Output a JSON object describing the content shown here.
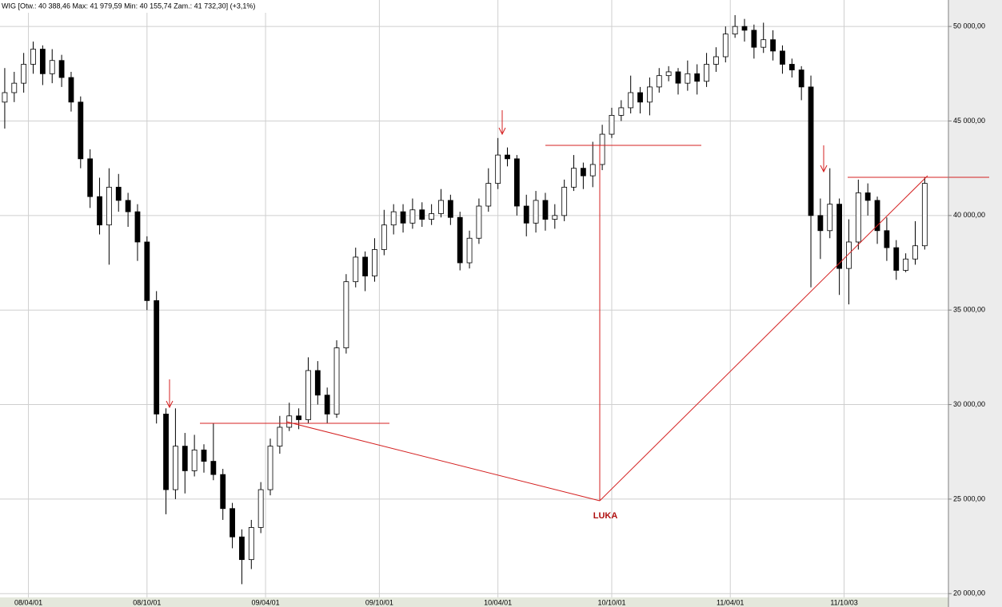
{
  "chart_data": {
    "type": "candlestick",
    "title": "WIG [Otw.: 40 388,46   Max: 41 979,59   Min: 40 155,74   Zam.: 41 732,30]  (+3,1%)",
    "annotation": "LUKA",
    "categories": [
      null,
      null,
      null,
      null,
      null,
      null,
      null,
      null,
      null,
      null,
      null,
      null,
      null,
      null,
      null,
      null,
      null,
      null,
      null,
      null,
      null,
      null,
      null,
      null,
      null,
      null,
      null,
      null,
      null,
      null,
      null,
      null,
      null,
      null,
      null,
      null,
      null,
      null,
      null,
      null,
      null,
      null,
      null,
      null,
      null,
      null,
      null,
      null,
      null,
      null,
      null,
      null,
      null,
      null,
      null,
      null,
      null,
      null,
      null,
      null,
      null,
      null,
      null,
      null,
      null,
      null,
      null,
      null,
      null,
      null,
      null,
      null,
      null,
      null,
      null,
      null,
      null,
      null,
      null,
      null,
      null,
      null,
      null,
      null,
      null,
      null,
      null,
      null,
      null,
      null,
      null,
      null,
      null,
      null,
      null,
      null,
      null,
      null
    ],
    "open": [
      46000,
      46500,
      47000,
      48000,
      48800,
      47500,
      48200,
      47300,
      46000,
      43000,
      41000,
      39500,
      41500,
      40800,
      40200,
      38600,
      35500,
      29500,
      25500,
      27800,
      26500,
      27600,
      27000,
      26300,
      24500,
      23000,
      21800,
      23500,
      25500,
      27800,
      28800,
      29400,
      29200,
      31800,
      30500,
      29500,
      33000,
      36500,
      37800,
      36800,
      38200,
      39500,
      40200,
      39600,
      40300,
      39800,
      40100,
      40800,
      39900,
      37500,
      38800,
      40500,
      41700,
      43200,
      43000,
      40500,
      39600,
      40800,
      39800,
      40000,
      41500,
      42500,
      42100,
      42700,
      44300,
      45300,
      45700,
      46500,
      46000,
      46800,
      47400,
      47600,
      47000,
      47500,
      47100,
      48000,
      48400,
      49600,
      50000,
      49800,
      48900,
      49300,
      48700,
      48000,
      47700,
      46800,
      40000,
      39200,
      40600,
      37200,
      38600,
      41200,
      40800,
      39200,
      38300,
      37100,
      37700,
      38400
    ],
    "high": [
      47800,
      47600,
      48600,
      49200,
      49000,
      48800,
      48500,
      47600,
      46300,
      43500,
      42000,
      42500,
      42200,
      41200,
      40600,
      38900,
      36000,
      29800,
      29800,
      28500,
      28400,
      27900,
      29000,
      26600,
      24800,
      23400,
      23900,
      25900,
      28200,
      29400,
      30100,
      29800,
      32500,
      32300,
      30900,
      33400,
      36900,
      38300,
      38100,
      38800,
      40300,
      40600,
      40600,
      40900,
      40700,
      40600,
      41400,
      41100,
      40200,
      39200,
      40900,
      42500,
      44100,
      43600,
      43200,
      41100,
      41300,
      41200,
      40600,
      41900,
      43200,
      42800,
      43900,
      44800,
      45700,
      46100,
      47400,
      46800,
      47300,
      47800,
      47900,
      47800,
      48200,
      48000,
      48600,
      48900,
      50000,
      50600,
      50400,
      50100,
      50200,
      49800,
      49000,
      48300,
      47900,
      47400,
      40900,
      42500,
      40900,
      39800,
      41900,
      41700,
      41000,
      39900,
      38700,
      38000,
      39700,
      42000
    ],
    "low": [
      44600,
      46000,
      46500,
      47500,
      46900,
      47000,
      46800,
      45500,
      42500,
      40400,
      39000,
      37400,
      40200,
      39400,
      37600,
      35000,
      29000,
      24200,
      25000,
      25300,
      26200,
      26400,
      26000,
      23900,
      22400,
      20500,
      21300,
      23200,
      25200,
      27400,
      28600,
      28700,
      29000,
      30000,
      29000,
      29300,
      32700,
      36200,
      36000,
      36500,
      37900,
      39000,
      39100,
      39300,
      39400,
      39500,
      39900,
      39500,
      37100,
      37200,
      38500,
      40200,
      41400,
      42600,
      40000,
      38900,
      39100,
      39200,
      39300,
      39700,
      41300,
      41400,
      41500,
      42400,
      44100,
      45000,
      45400,
      45400,
      45300,
      46500,
      47100,
      46400,
      46600,
      46400,
      46800,
      47600,
      48100,
      49400,
      49200,
      48300,
      48600,
      48200,
      47500,
      47300,
      46100,
      36200,
      37700,
      38800,
      35800,
      35300,
      38200,
      40000,
      38500,
      37600,
      36600,
      37000,
      37400,
      38200
    ],
    "close": [
      46500,
      47000,
      48000,
      48800,
      47500,
      48200,
      47300,
      46000,
      43000,
      41000,
      39500,
      41500,
      40800,
      40200,
      38600,
      35500,
      29500,
      25500,
      27800,
      26500,
      27600,
      27000,
      26300,
      24500,
      23000,
      21800,
      23500,
      25500,
      27800,
      28800,
      29400,
      29200,
      31800,
      30500,
      29500,
      33000,
      36500,
      37800,
      36800,
      38200,
      39500,
      40200,
      39600,
      40300,
      39800,
      40100,
      40800,
      39900,
      37500,
      38800,
      40500,
      41700,
      43200,
      43000,
      40500,
      39600,
      40800,
      39800,
      40000,
      41500,
      42500,
      42100,
      42700,
      44300,
      45300,
      45700,
      46500,
      46000,
      46800,
      47400,
      47600,
      47000,
      47500,
      47100,
      48000,
      48400,
      49600,
      50000,
      49800,
      48900,
      49300,
      48700,
      48000,
      47700,
      46800,
      40000,
      39200,
      40600,
      37200,
      38600,
      41200,
      40800,
      39200,
      38300,
      37100,
      37700,
      38400,
      41700
    ],
    "up_color": "#ffffff",
    "down_color": "#000000",
    "grid": true,
    "ylim": [
      19800,
      51400
    ],
    "yticks": [
      {
        "value": 20000,
        "label": "20 000,00"
      },
      {
        "value": 25000,
        "label": "25 000,00"
      },
      {
        "value": 30000,
        "label": "30 000,00"
      },
      {
        "value": 35000,
        "label": "35 000,00"
      },
      {
        "value": 40000,
        "label": "40 000,00"
      },
      {
        "value": 45000,
        "label": "45 000,00"
      },
      {
        "value": 50000,
        "label": "50 000,00"
      }
    ],
    "xticks": [
      {
        "value": 2.5,
        "label": "08/04/01"
      },
      {
        "value": 15,
        "label": "08/10/01"
      },
      {
        "value": 27.5,
        "label": "09/04/01"
      },
      {
        "value": 39.5,
        "label": "09/10/01"
      },
      {
        "value": 52,
        "label": "10/04/01"
      },
      {
        "value": 64,
        "label": "10/10/01"
      },
      {
        "value": 76.5,
        "label": "11/04/01"
      },
      {
        "value": 88.5,
        "label": "11/10/03"
      }
    ]
  }
}
